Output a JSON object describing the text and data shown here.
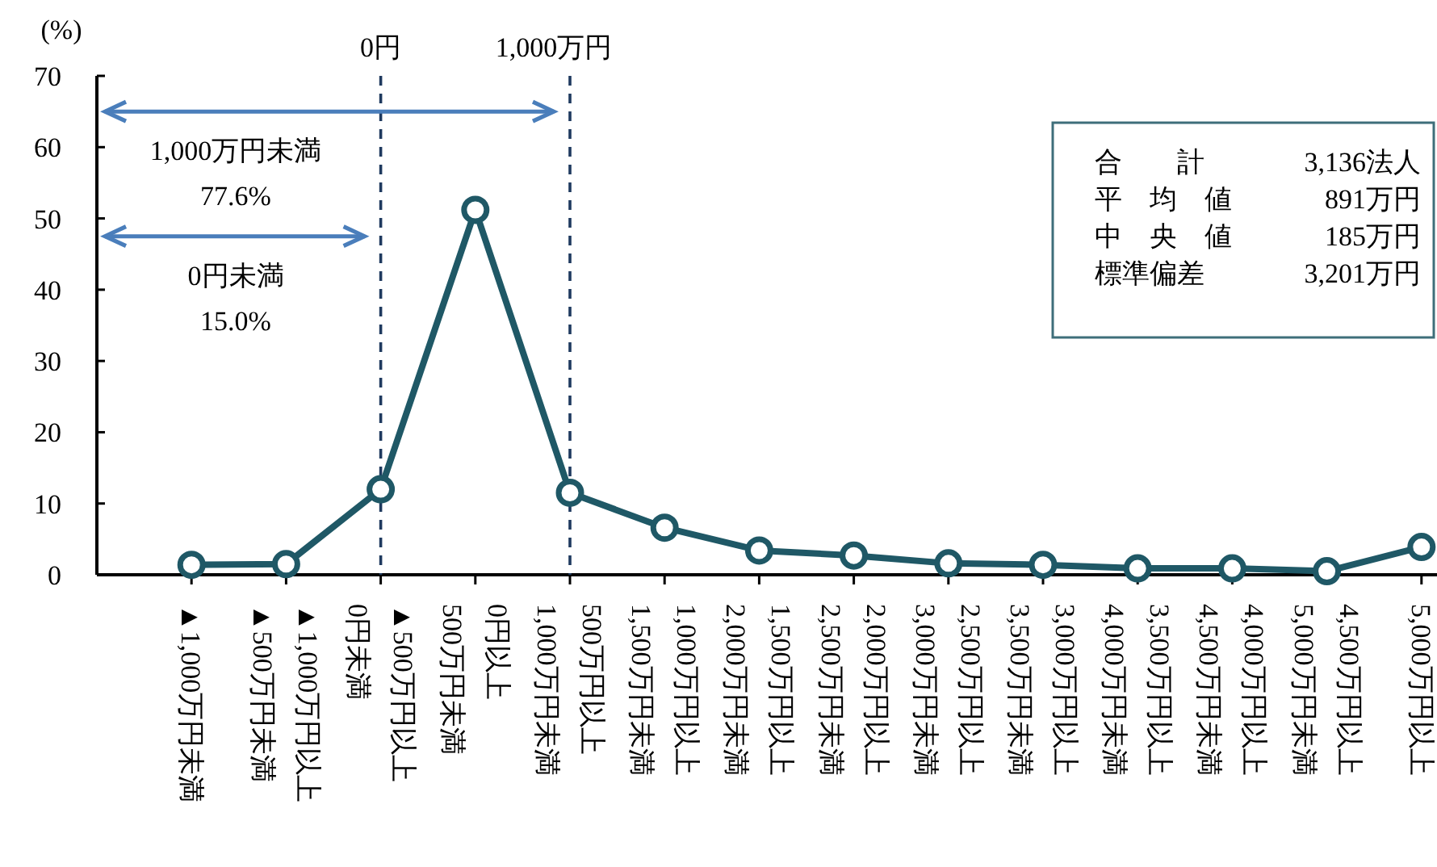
{
  "chart_data": {
    "type": "line",
    "ylabel": "(%)",
    "categories": [
      "▲1,000万円未満",
      "▲1,000万円以上\n▲500万円未満",
      "▲500万円以上\n0円未満",
      "0円以上\n500万円未満",
      "500万円以上\n1,000万円未満",
      "1,000万円以上\n1,500万円未満",
      "1,500万円以上\n2,000万円未満",
      "2,000万円以上\n2,500万円未満",
      "2,500万円以上\n3,000万円未満",
      "3,000万円以上\n3,500万円未満",
      "3,500万円以上\n4,000万円未満",
      "4,000万円以上\n4,500万円未満",
      "4,500万円以上\n5,000万円未満",
      "5,000万円以上"
    ],
    "series": [
      {
        "color": "#1f5866",
        "values": [
          1.4,
          1.5,
          12.0,
          51.2,
          11.5,
          6.6,
          3.4,
          2.7,
          1.6,
          1.4,
          0.9,
          0.9,
          0.5,
          3.9
        ]
      }
    ],
    "ylim": [
      0,
      70
    ],
    "yticks": [
      0,
      10,
      20,
      30,
      40,
      50,
      60,
      70
    ],
    "marker": "circle",
    "line_style": "solid",
    "grid": false,
    "ref_lines": [
      {
        "axis": "x",
        "value": "▲500万円以上\n0円未満",
        "label": "0円",
        "color": "#1f3a5f",
        "line_style": "dashed"
      },
      {
        "axis": "x",
        "value": "500万円以上\n1,000万円未満",
        "label": "1,000万円",
        "color": "#1f3a5f",
        "line_style": "dashed"
      }
    ],
    "annotations": [
      "1,000万円未満\n77.6%",
      "0円未満\n15.0%",
      "合　　計　3,136法人",
      "平　均　値　891万円",
      "中　央　値　185万円",
      "標準偏差　3,201万円"
    ]
  }
}
